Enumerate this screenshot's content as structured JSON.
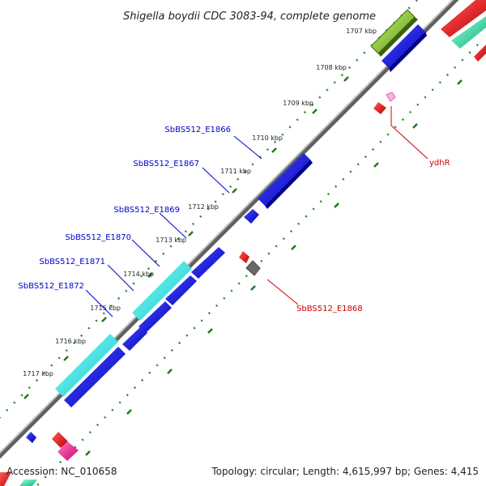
{
  "title": "Shigella boydii CDC 3083-94, complete genome",
  "ticks": [
    "1707 kbp",
    "1708 kbp",
    "1709 kbp",
    "1710 kbp",
    "1711 kbp",
    "1712 kbp",
    "1713 kbp",
    "1714 kbp",
    "1715 kbp",
    "1716 kbp",
    "1717 kbp"
  ],
  "gene_labels": {
    "e1866": "SbBS512_E1866",
    "e1867": "SbBS512_E1867",
    "e1869": "SbBS512_E1869",
    "e1870": "SbBS512_E1870",
    "e1871": "SbBS512_E1871",
    "e1872": "SbBS512_E1872",
    "ydhR": "ydhR",
    "e1868": "SbBS512_E1868"
  },
  "footer": {
    "accession": "Accession: NC_010658",
    "summary": "Topology: circular; Length: 4,615,997 bp; Genes: 4,415"
  },
  "colors": {
    "cds_forward": "#0a0adc",
    "cds_highlight": "#22e0e0",
    "cds_reverse": "#e00000",
    "pseudo": "#666666",
    "rrna": "#ff1a8c",
    "trna": "#88cc22",
    "misc": "#20e0a0",
    "backbone": "#808080",
    "label_forward": "#0000cc",
    "label_reverse": "#cc0000",
    "tick_dots": "#2a8a2a"
  }
}
